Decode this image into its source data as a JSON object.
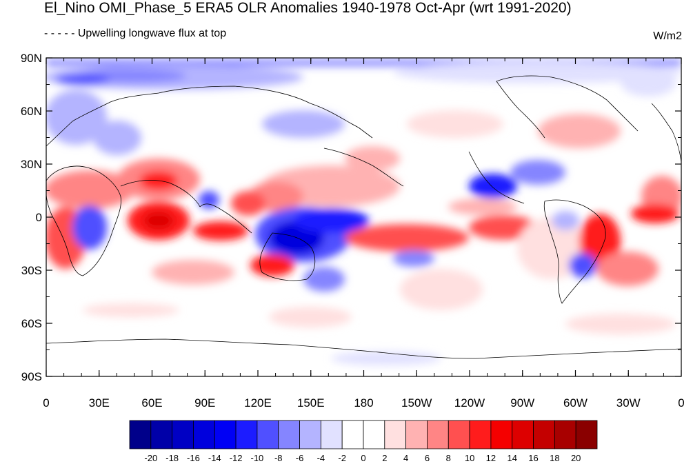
{
  "title": "El_Nino OMI_Phase_5 ERA5 OLR Anomalies 1940-1978 Oct-Apr (wrt 1991-2020)",
  "subtitle": "- - - - - Upwelling longwave flux at top",
  "units": "W/m2",
  "lat_ticks": [
    "90N",
    "60N",
    "30N",
    "0",
    "30S",
    "60S",
    "90S"
  ],
  "lon_ticks": [
    "0",
    "30E",
    "60E",
    "90E",
    "120E",
    "150E",
    "180",
    "150W",
    "120W",
    "90W",
    "60W",
    "30W",
    "0"
  ],
  "colorbar": {
    "labels": [
      "-20",
      "-18",
      "-16",
      "-14",
      "-12",
      "-10",
      "-8",
      "-6",
      "-4",
      "-2",
      "0",
      "2",
      "4",
      "6",
      "8",
      "10",
      "12",
      "14",
      "16",
      "18",
      "20"
    ],
    "colors": [
      "#00008a",
      "#0000a8",
      "#0000c4",
      "#0000dd",
      "#0000f5",
      "#1c1cff",
      "#5050ff",
      "#8585ff",
      "#b4b4ff",
      "#e1e1ff",
      "#ffffff",
      "#ffffff",
      "#ffe0e0",
      "#ffb2b2",
      "#ff8585",
      "#ff5050",
      "#ff1c1c",
      "#f50000",
      "#dd0000",
      "#c40000",
      "#a80000",
      "#8a0000"
    ]
  }
}
